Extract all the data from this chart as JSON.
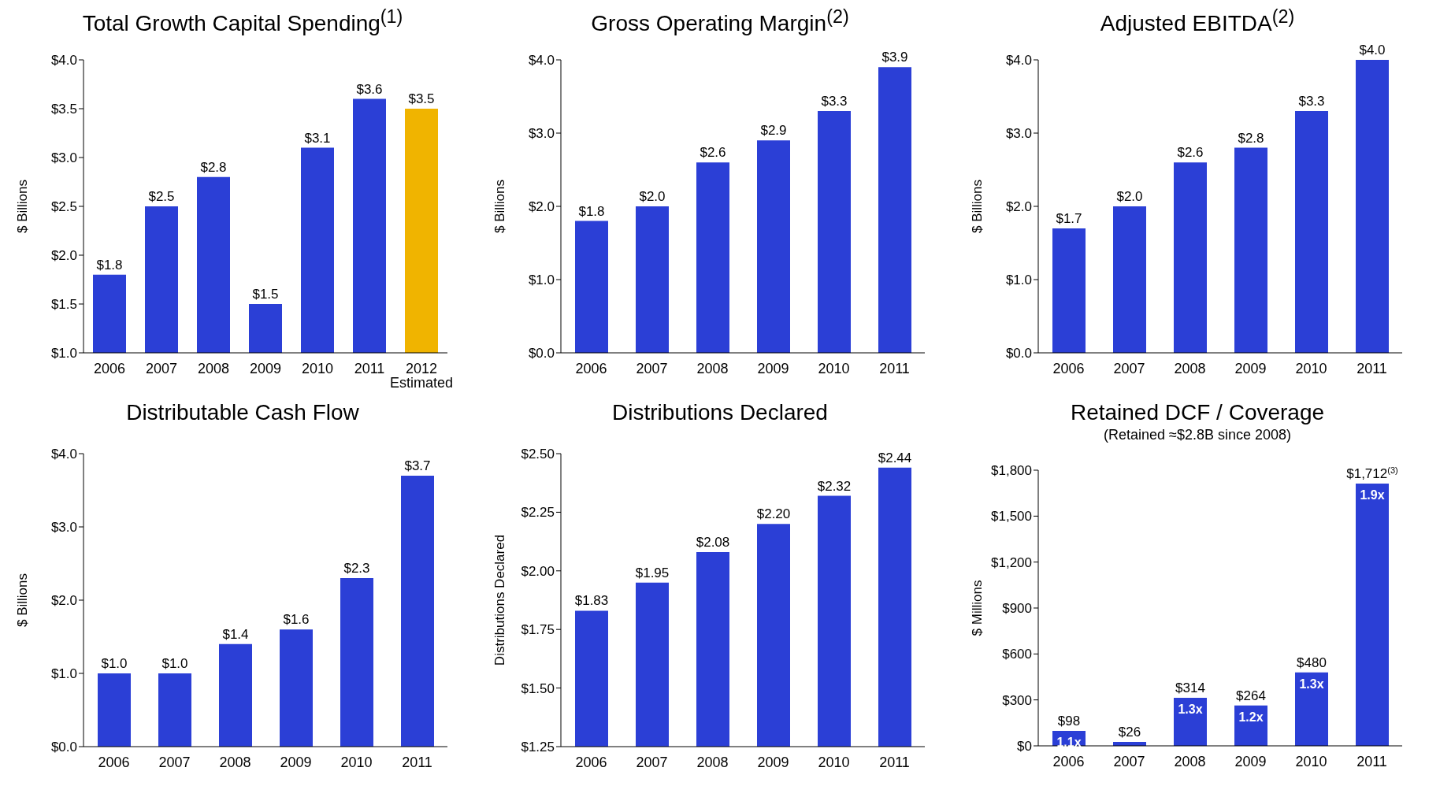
{
  "chart_data": [
    {
      "type": "bar",
      "title": "Total Growth Capital Spending$^{(1)}$",
      "ylabel": "$ Billions",
      "categories": [
        "2006",
        "2007",
        "2008",
        "2009",
        "2010",
        "2011",
        "2012\nEstimated"
      ],
      "values": [
        1.8,
        2.5,
        2.8,
        1.5,
        3.1,
        3.6,
        3.5
      ],
      "colors": [
        "#2b3fd6",
        "#2b3fd6",
        "#2b3fd6",
        "#2b3fd6",
        "#2b3fd6",
        "#2b3fd6",
        "#f0b400"
      ],
      "value_labels": [
        "$1.8",
        "$2.5",
        "$2.8",
        "$1.5",
        "$3.1",
        "$3.6",
        "$3.5"
      ],
      "ylim": [
        1,
        4
      ],
      "yticks": [
        {
          "value": 1,
          "label": "$1.0"
        },
        {
          "value": 1.5,
          "label": "$1.5"
        },
        {
          "value": 2,
          "label": "$2.0"
        },
        {
          "value": 2.5,
          "label": "$2.5"
        },
        {
          "value": 3,
          "label": "$3.0"
        },
        {
          "value": 3.5,
          "label": "$3.5"
        },
        {
          "value": 4,
          "label": "$4.0"
        }
      ]
    },
    {
      "type": "bar",
      "title": "Gross Operating Margin$^{(2)}$",
      "ylabel": "$ Billions",
      "categories": [
        "2006",
        "2007",
        "2008",
        "2009",
        "2010",
        "2011"
      ],
      "values": [
        1.8,
        2.0,
        2.6,
        2.9,
        3.3,
        3.9
      ],
      "colors": [
        "#2b3fd6",
        "#2b3fd6",
        "#2b3fd6",
        "#2b3fd6",
        "#2b3fd6",
        "#2b3fd6"
      ],
      "value_labels": [
        "$1.8",
        "$2.0",
        "$2.6",
        "$2.9",
        "$3.3",
        "$3.9"
      ],
      "ylim": [
        0,
        4
      ],
      "yticks": [
        {
          "value": 0,
          "label": "$0.0"
        },
        {
          "value": 1,
          "label": "$1.0"
        },
        {
          "value": 2,
          "label": "$2.0"
        },
        {
          "value": 3,
          "label": "$3.0"
        },
        {
          "value": 4,
          "label": "$4.0"
        }
      ]
    },
    {
      "type": "bar",
      "title": "Adjusted EBITDA$^{(2)}$",
      "ylabel": "$ Billions",
      "categories": [
        "2006",
        "2007",
        "2008",
        "2009",
        "2010",
        "2011"
      ],
      "values": [
        1.7,
        2.0,
        2.6,
        2.8,
        3.3,
        4.0
      ],
      "colors": [
        "#2b3fd6",
        "#2b3fd6",
        "#2b3fd6",
        "#2b3fd6",
        "#2b3fd6",
        "#2b3fd6"
      ],
      "value_labels": [
        "$1.7",
        "$2.0",
        "$2.6",
        "$2.8",
        "$3.3",
        "$4.0"
      ],
      "ylim": [
        0,
        4
      ],
      "yticks": [
        {
          "value": 0,
          "label": "$0.0"
        },
        {
          "value": 1,
          "label": "$1.0"
        },
        {
          "value": 2,
          "label": "$2.0"
        },
        {
          "value": 3,
          "label": "$3.0"
        },
        {
          "value": 4,
          "label": "$4.0"
        }
      ]
    },
    {
      "type": "bar",
      "title": "Distributable Cash Flow",
      "ylabel": "$ Billions",
      "categories": [
        "2006",
        "2007",
        "2008",
        "2009",
        "2010",
        "2011"
      ],
      "values": [
        1.0,
        1.0,
        1.4,
        1.6,
        2.3,
        3.7
      ],
      "colors": [
        "#2b3fd6",
        "#2b3fd6",
        "#2b3fd6",
        "#2b3fd6",
        "#2b3fd6",
        "#2b3fd6"
      ],
      "value_labels": [
        "$1.0",
        "$1.0",
        "$1.4",
        "$1.6",
        "$2.3",
        "$3.7"
      ],
      "ylim": [
        0,
        4
      ],
      "yticks": [
        {
          "value": 0,
          "label": "$0.0"
        },
        {
          "value": 1,
          "label": "$1.0"
        },
        {
          "value": 2,
          "label": "$2.0"
        },
        {
          "value": 3,
          "label": "$3.0"
        },
        {
          "value": 4,
          "label": "$4.0"
        }
      ]
    },
    {
      "type": "bar",
      "title": "Distributions Declared",
      "ylabel": "Distributions Declared",
      "categories": [
        "2006",
        "2007",
        "2008",
        "2009",
        "2010",
        "2011"
      ],
      "values": [
        1.83,
        1.95,
        2.08,
        2.2,
        2.32,
        2.44
      ],
      "colors": [
        "#2b3fd6",
        "#2b3fd6",
        "#2b3fd6",
        "#2b3fd6",
        "#2b3fd6",
        "#2b3fd6"
      ],
      "value_labels": [
        "$1.83",
        "$1.95",
        "$2.08",
        "$2.20",
        "$2.32",
        "$2.44"
      ],
      "ylim": [
        1.25,
        2.5
      ],
      "yticks": [
        {
          "value": 1.25,
          "label": "$1.25"
        },
        {
          "value": 1.5,
          "label": "$1.50"
        },
        {
          "value": 1.75,
          "label": "$1.75"
        },
        {
          "value": 2,
          "label": "$2.00"
        },
        {
          "value": 2.25,
          "label": "$2.25"
        },
        {
          "value": 2.5,
          "label": "$2.50"
        }
      ]
    },
    {
      "type": "bar",
      "title": "Retained DCF / Coverage",
      "subtitle": "(Retained ≈$2.8B since 2008)",
      "ylabel": "$ Millions",
      "categories": [
        "2006",
        "2007",
        "2008",
        "2009",
        "2010",
        "2011"
      ],
      "values": [
        98,
        26,
        314,
        264,
        480,
        1712
      ],
      "colors": [
        "#2b3fd6",
        "#2b3fd6",
        "#2b3fd6",
        "#2b3fd6",
        "#2b3fd6",
        "#2b3fd6"
      ],
      "value_labels": [
        "$98",
        "$26",
        "$314",
        "$264",
        "$480",
        "$1,712$^{(3)}$"
      ],
      "ylim": [
        0,
        1800
      ],
      "yticks": [
        {
          "value": 0,
          "label": "$0"
        },
        {
          "value": 300,
          "label": "$300"
        },
        {
          "value": 600,
          "label": "$600"
        },
        {
          "value": 900,
          "label": "$900"
        },
        {
          "value": 1200,
          "label": "$1,200"
        },
        {
          "value": 1500,
          "label": "$1,500"
        },
        {
          "value": 1800,
          "label": "$1,800"
        }
      ],
      "annotations": [
        {
          "text": "1.1x",
          "x": "2006",
          "y": 98
        },
        {
          "text": "1.3x",
          "x": "2008",
          "y": 314
        },
        {
          "text": "1.2x",
          "x": "2009",
          "y": 264
        },
        {
          "text": "1.3x",
          "x": "2010",
          "y": 480
        },
        {
          "text": "1.9x",
          "x": "2011",
          "y": 1712
        }
      ]
    }
  ]
}
